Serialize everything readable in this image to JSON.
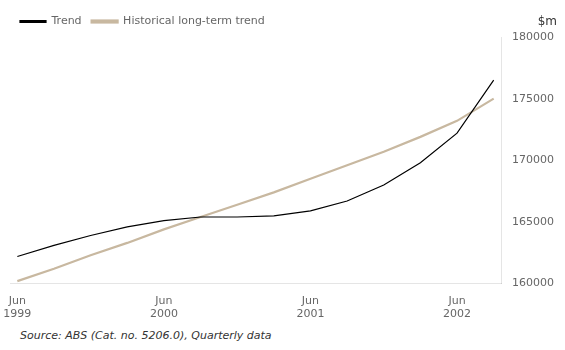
{
  "chart_data": {
    "type": "line",
    "x": [
      0,
      1,
      2,
      3,
      4,
      5,
      6,
      7,
      8,
      9,
      10,
      11,
      12,
      13
    ],
    "series": [
      {
        "name": "Historical long-term trend",
        "color": "#c8b8a0",
        "values": [
          160200,
          161200,
          162300,
          163300,
          164400,
          165400,
          166400,
          167400,
          168500,
          169600,
          170700,
          171900,
          173200,
          175000
        ]
      },
      {
        "name": "Trend",
        "color": "#000000",
        "values": [
          162200,
          163100,
          163900,
          164600,
          165100,
          165400,
          165400,
          165500,
          165900,
          166700,
          168000,
          169800,
          172200,
          176500
        ]
      }
    ],
    "ylabel": "$m",
    "source": "Source: ABS (Cat. no. 5206.0), Quarterly data",
    "xlim": [
      -0.2,
      13.2
    ],
    "xticks": [
      {
        "value": 0,
        "label": "Jun\n1999"
      },
      {
        "value": 4,
        "label": "Jun\n2000"
      },
      {
        "value": 8,
        "label": "Jun\n2001"
      },
      {
        "value": 12,
        "label": "Jun\n2002"
      }
    ],
    "ylim": [
      160000,
      180000
    ],
    "yticks": [
      160000,
      165000,
      170000,
      175000,
      180000
    ],
    "grid": false,
    "legend": "upper left"
  }
}
